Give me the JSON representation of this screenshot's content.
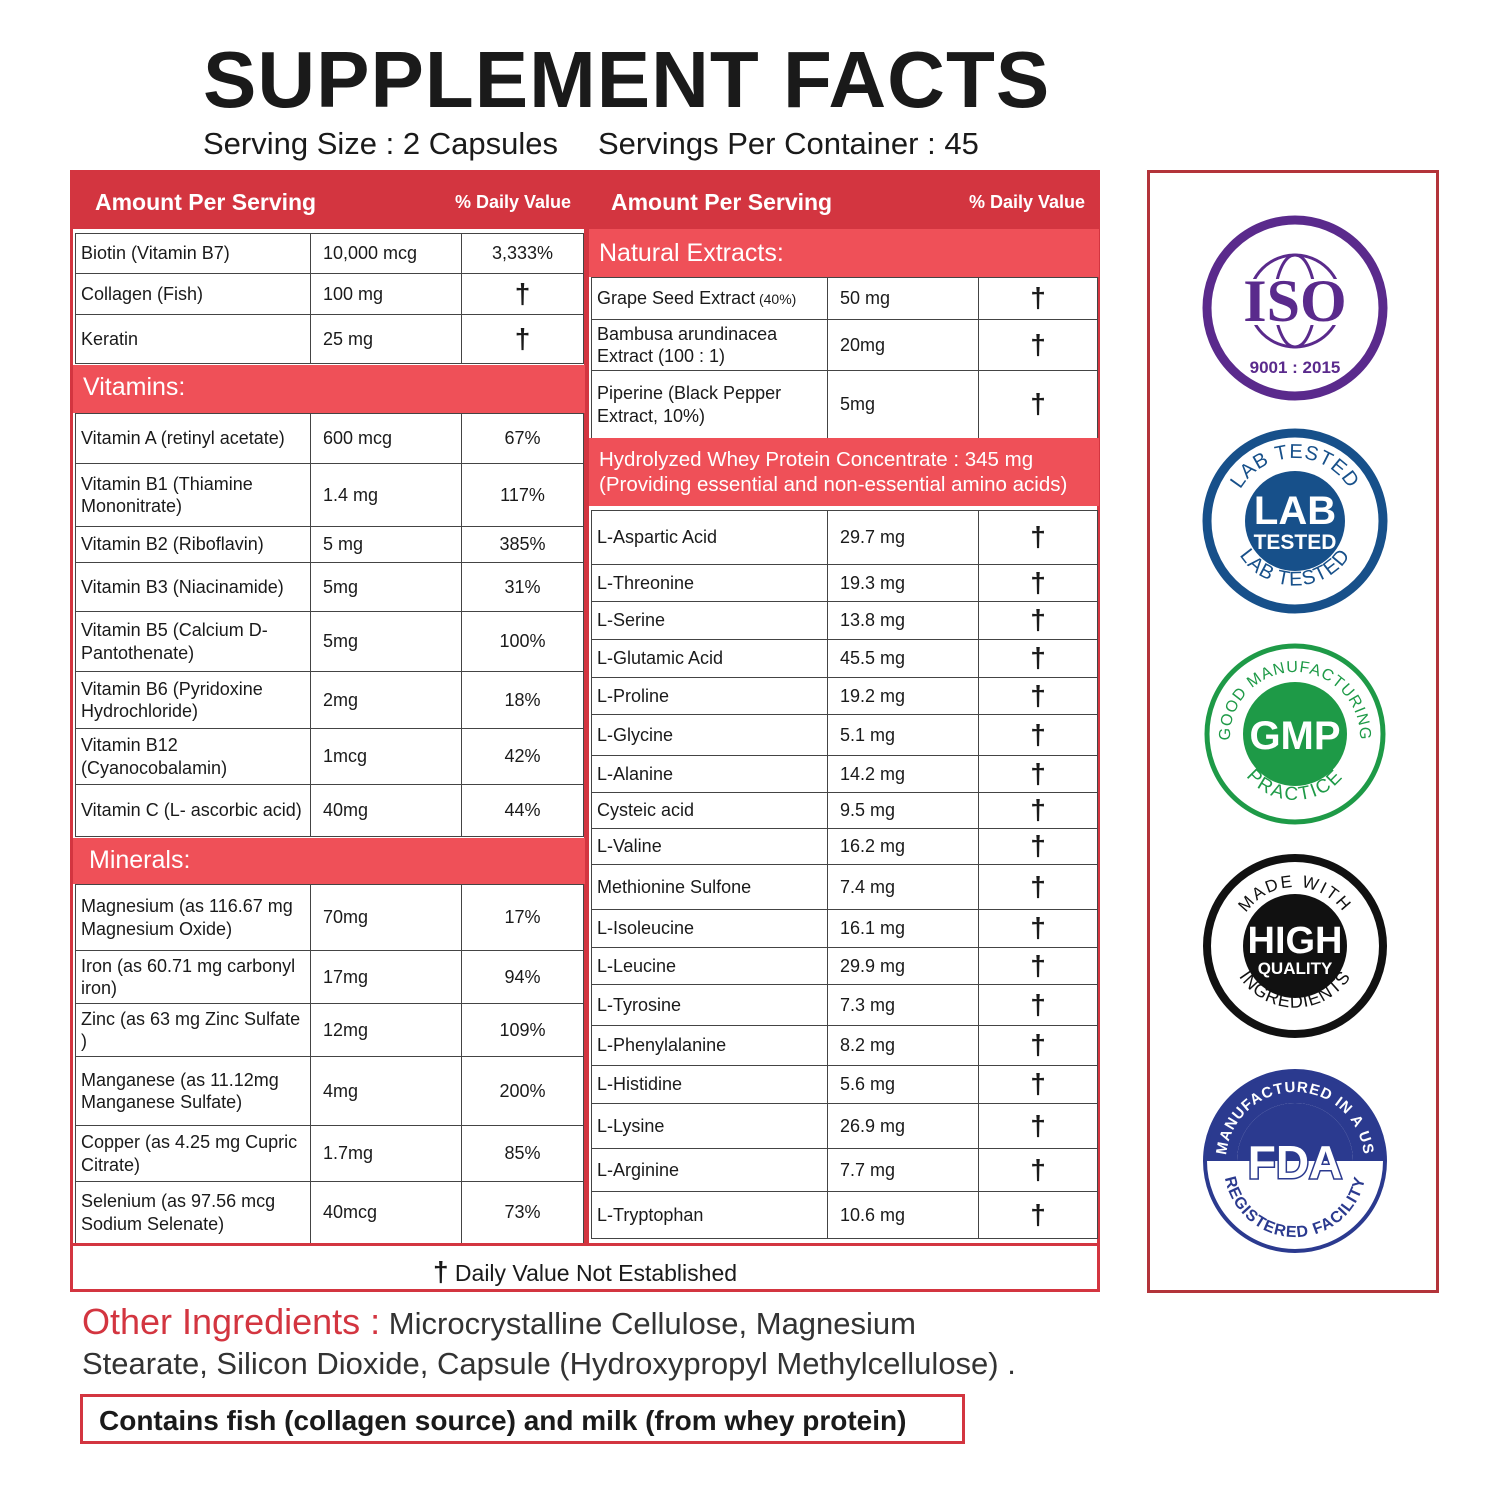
{
  "title": "SUPPLEMENT FACTS",
  "serving_size": "Serving Size : 2 Capsules",
  "servings_per_container": "Servings Per Container : 45",
  "header": {
    "amount": "Amount Per Serving",
    "dv": "% Daily Value"
  },
  "dagger": "†",
  "top_rows": [
    {
      "name": "Biotin (Vitamin B7)",
      "amount": "10,000 mcg",
      "dv": "3,333%"
    },
    {
      "name": "Collagen (Fish)",
      "amount": "100 mg",
      "dv": "†"
    },
    {
      "name": "Keratin",
      "amount": "25 mg",
      "dv": "†"
    }
  ],
  "vitamins_title": "Vitamins:",
  "vitamins": [
    {
      "name": "Vitamin A (retinyl acetate)",
      "amount": "600 mcg",
      "dv": "67%"
    },
    {
      "name": "Vitamin B1 (Thiamine Mononitrate)",
      "amount": "1.4 mg",
      "dv": "117%"
    },
    {
      "name": "Vitamin B2 (Riboflavin)",
      "amount": "5 mg",
      "dv": "385%"
    },
    {
      "name": "Vitamin B3 (Niacinamide)",
      "amount": "5mg",
      "dv": "31%"
    },
    {
      "name": "Vitamin B5 (Calcium D-Pantothenate)",
      "amount": "5mg",
      "dv": "100%"
    },
    {
      "name": "Vitamin B6 (Pyridoxine Hydrochloride)",
      "amount": "2mg",
      "dv": "18%"
    },
    {
      "name": "Vitamin B12 (Cyanocobalamin)",
      "amount": "1mcg",
      "dv": "42%"
    },
    {
      "name": "Vitamin C (L- ascorbic acid)",
      "amount": "40mg",
      "dv": "44%"
    }
  ],
  "minerals_title": "Minerals:",
  "minerals": [
    {
      "name": "Magnesium (as 116.67 mg Magnesium Oxide)",
      "amount": "70mg",
      "dv": "17%"
    },
    {
      "name": "Iron (as 60.71 mg carbonyl iron)",
      "amount": "17mg",
      "dv": "94%"
    },
    {
      "name": "Zinc (as 63 mg Zinc Sulfate )",
      "amount": "12mg",
      "dv": "109%"
    },
    {
      "name": "Manganese (as 11.12mg Manganese Sulfate)",
      "amount": "4mg",
      "dv": "200%"
    },
    {
      "name": "Copper (as 4.25 mg Cupric Citrate)",
      "amount": "1.7mg",
      "dv": "85%"
    },
    {
      "name": "Selenium (as 97.56 mcg Sodium Selenate)",
      "amount": "40mcg",
      "dv": "73%"
    }
  ],
  "extracts_title": "Natural Extracts:",
  "extracts": [
    {
      "name": "Grape Seed Extract",
      "note": "(40%)",
      "amount": "50 mg",
      "dv": "†"
    },
    {
      "name": "Bambusa arundinacea Extract (100 : 1)",
      "amount": "20mg",
      "dv": "†"
    },
    {
      "name": "Piperine (Black Pepper Extract, 10%)",
      "amount": "5mg",
      "dv": "†"
    }
  ],
  "whey": {
    "line1": "Hydrolyzed Whey Protein Concentrate : 345 mg",
    "line2": "(Providing essential and non-essential amino acids)"
  },
  "amino_acids": [
    {
      "name": "L-Aspartic Acid",
      "amount": "29.7 mg",
      "dv": "†"
    },
    {
      "name": "L-Threonine",
      "amount": "19.3 mg",
      "dv": "†"
    },
    {
      "name": "L-Serine",
      "amount": "13.8 mg",
      "dv": "†"
    },
    {
      "name": "L-Glutamic Acid",
      "amount": "45.5 mg",
      "dv": "†"
    },
    {
      "name": "L-Proline",
      "amount": "19.2 mg",
      "dv": "†"
    },
    {
      "name": "L-Glycine",
      "amount": "5.1 mg",
      "dv": "†"
    },
    {
      "name": "L-Alanine",
      "amount": "14.2 mg",
      "dv": "†"
    },
    {
      "name": "Cysteic acid",
      "amount": "9.5 mg",
      "dv": "†"
    },
    {
      "name": "L-Valine",
      "amount": "16.2 mg",
      "dv": "†"
    },
    {
      "name": "Methionine Sulfone",
      "amount": "7.4 mg",
      "dv": "†"
    },
    {
      "name": "L-Isoleucine",
      "amount": "16.1 mg",
      "dv": "†"
    },
    {
      "name": "L-Leucine",
      "amount": "29.9 mg",
      "dv": "†"
    },
    {
      "name": "L-Tyrosine",
      "amount": "7.3 mg",
      "dv": "†"
    },
    {
      "name": "L-Phenylalanine",
      "amount": "8.2 mg",
      "dv": "†"
    },
    {
      "name": "L-Histidine",
      "amount": "5.6 mg",
      "dv": "†"
    },
    {
      "name": "L-Lysine",
      "amount": "26.9 mg",
      "dv": "†"
    },
    {
      "name": "L-Arginine",
      "amount": "7.7 mg",
      "dv": "†"
    },
    {
      "name": "L-Tryptophan",
      "amount": "10.6 mg",
      "dv": "†"
    }
  ],
  "footnote": "Daily Value Not Established",
  "other_ingredients": {
    "label": "Other Ingredients :",
    "text": "Microcrystalline Cellulose, Magnesium Stearate, Silicon Dioxide, Capsule (Hydroxypropyl Methylcellulose) ."
  },
  "allergen": "Contains fish (collagen source) and milk (from whey protein)",
  "badges": {
    "iso": {
      "main": "ISO",
      "sub": "9001 : 2015",
      "color": "#5a2a8c"
    },
    "lab": {
      "main": "LAB",
      "sub": "TESTED",
      "ring_top": "LAB TESTED",
      "ring_bottom": "LAB TESTED",
      "color": "#17508a"
    },
    "gmp": {
      "main": "GMP",
      "ring_top": "GOOD MANUFACTURING",
      "ring_bottom": "PRACTICE",
      "color": "#1e9a47"
    },
    "hq": {
      "main": "HIGH",
      "sub": "QUALITY",
      "ring_top": "MADE WITH",
      "ring_bottom": "INGREDIENTS",
      "color": "#111111"
    },
    "fda": {
      "main": "FDA",
      "ring_top": "MANUFACTURED IN A US",
      "ring_bottom": "REGISTERED FACILITY",
      "color": "#2b3a8f"
    }
  },
  "colors": {
    "accent": "#d33540",
    "section": "#ef5058"
  }
}
